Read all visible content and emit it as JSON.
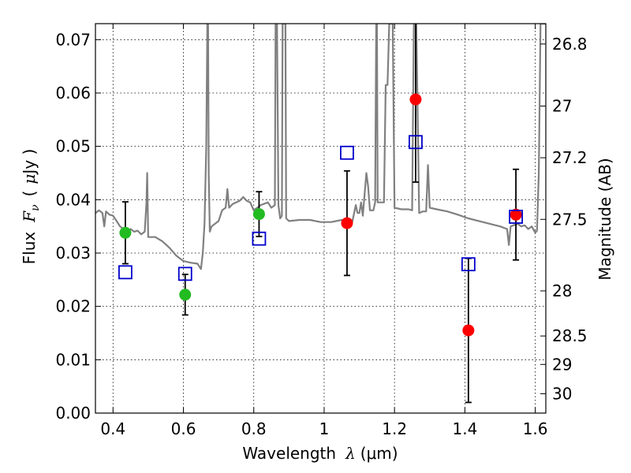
{
  "chart_data": {
    "type": "scatter",
    "xlabel": {
      "text": "Wavelength",
      "symbol": "λ",
      "unit": "(μm)"
    },
    "ylabel": {
      "text": "Flux",
      "symbol": "F",
      "subscript": "ν",
      "unit_open": "(",
      "unit_mu": "μ",
      "unit_rest": "Jy )"
    },
    "y2label": "Magnitude (AB)",
    "xlim": [
      0.35,
      1.63
    ],
    "ylim": [
      0.0,
      0.073
    ],
    "grid": true,
    "x_ticks": [
      {
        "value": 0.4,
        "label": "0.4"
      },
      {
        "value": 0.6,
        "label": "0.6"
      },
      {
        "value": 0.8,
        "label": "0.8"
      },
      {
        "value": 1.0,
        "label": "1"
      },
      {
        "value": 1.2,
        "label": "1.2"
      },
      {
        "value": 1.4,
        "label": "1.4"
      },
      {
        "value": 1.6,
        "label": "1.6"
      }
    ],
    "y_ticks": [
      {
        "value": 0.0,
        "label": "0.00"
      },
      {
        "value": 0.01,
        "label": "0.01"
      },
      {
        "value": 0.02,
        "label": "0.02"
      },
      {
        "value": 0.03,
        "label": "0.03"
      },
      {
        "value": 0.04,
        "label": "0.04"
      },
      {
        "value": 0.05,
        "label": "0.05"
      },
      {
        "value": 0.06,
        "label": "0.06"
      },
      {
        "value": 0.07,
        "label": "0.07"
      }
    ],
    "y2_ticks": [
      {
        "value": 26.8,
        "label": "26.8"
      },
      {
        "value": 27.0,
        "label": "27"
      },
      {
        "value": 27.2,
        "label": "27.2"
      },
      {
        "value": 27.5,
        "label": "27.5"
      },
      {
        "value": 28.0,
        "label": "28"
      },
      {
        "value": 28.5,
        "label": "28.5"
      },
      {
        "value": 29.0,
        "label": "29"
      },
      {
        "value": 30.0,
        "label": "30"
      }
    ],
    "series": [
      {
        "kind": "line",
        "color": "#808080",
        "points": [
          [
            0.35,
            0.0375
          ],
          [
            0.36,
            0.038
          ],
          [
            0.37,
            0.0375
          ],
          [
            0.375,
            0.035
          ],
          [
            0.38,
            0.0378
          ],
          [
            0.39,
            0.0372
          ],
          [
            0.4,
            0.037
          ],
          [
            0.41,
            0.036
          ],
          [
            0.42,
            0.035
          ],
          [
            0.43,
            0.0345
          ],
          [
            0.44,
            0.034
          ],
          [
            0.45,
            0.0345
          ],
          [
            0.46,
            0.034
          ],
          [
            0.47,
            0.0342
          ],
          [
            0.48,
            0.0335
          ],
          [
            0.49,
            0.034
          ],
          [
            0.495,
            0.0395
          ],
          [
            0.497,
            0.045
          ],
          [
            0.5,
            0.033
          ],
          [
            0.52,
            0.033
          ],
          [
            0.54,
            0.0322
          ],
          [
            0.56,
            0.031
          ],
          [
            0.58,
            0.0295
          ],
          [
            0.6,
            0.0285
          ],
          [
            0.62,
            0.0282
          ],
          [
            0.64,
            0.028
          ],
          [
            0.65,
            0.027
          ],
          [
            0.655,
            0.03
          ],
          [
            0.66,
            0.0355
          ],
          [
            0.665,
            0.05
          ],
          [
            0.668,
            0.073
          ],
          [
            0.67,
            0.073
          ],
          [
            0.672,
            0.045
          ],
          [
            0.675,
            0.034
          ],
          [
            0.68,
            0.035
          ],
          [
            0.7,
            0.036
          ],
          [
            0.71,
            0.038
          ],
          [
            0.72,
            0.0385
          ],
          [
            0.725,
            0.042
          ],
          [
            0.73,
            0.0385
          ],
          [
            0.74,
            0.0392
          ],
          [
            0.75,
            0.0395
          ],
          [
            0.76,
            0.0398
          ],
          [
            0.77,
            0.0405
          ],
          [
            0.78,
            0.0398
          ],
          [
            0.79,
            0.0395
          ],
          [
            0.8,
            0.038
          ],
          [
            0.82,
            0.039
          ],
          [
            0.84,
            0.0395
          ],
          [
            0.85,
            0.0385
          ],
          [
            0.86,
            0.039
          ],
          [
            0.862,
            0.073
          ],
          [
            0.866,
            0.073
          ],
          [
            0.87,
            0.039
          ],
          [
            0.875,
            0.0365
          ],
          [
            0.88,
            0.037
          ],
          [
            0.882,
            0.073
          ],
          [
            0.89,
            0.073
          ],
          [
            0.892,
            0.0365
          ],
          [
            0.9,
            0.036
          ],
          [
            0.93,
            0.0362
          ],
          [
            0.96,
            0.0362
          ],
          [
            0.99,
            0.0358
          ],
          [
            1.02,
            0.0358
          ],
          [
            1.05,
            0.0362
          ],
          [
            1.08,
            0.0358
          ],
          [
            1.09,
            0.039
          ],
          [
            1.095,
            0.0375
          ],
          [
            1.1,
            0.0375
          ],
          [
            1.105,
            0.0395
          ],
          [
            1.11,
            0.037
          ],
          [
            1.12,
            0.045
          ],
          [
            1.125,
            0.0425
          ],
          [
            1.13,
            0.038
          ],
          [
            1.14,
            0.038
          ],
          [
            1.145,
            0.0395
          ],
          [
            1.148,
            0.073
          ],
          [
            1.15,
            0.073
          ],
          [
            1.152,
            0.0395
          ],
          [
            1.16,
            0.0395
          ],
          [
            1.17,
            0.0395
          ],
          [
            1.175,
            0.0615
          ],
          [
            1.18,
            0.0615
          ],
          [
            1.185,
            0.073
          ],
          [
            1.195,
            0.073
          ],
          [
            1.2,
            0.0385
          ],
          [
            1.22,
            0.0382
          ],
          [
            1.24,
            0.0382
          ],
          [
            1.25,
            0.038
          ],
          [
            1.255,
            0.073
          ],
          [
            1.262,
            0.073
          ],
          [
            1.27,
            0.0375
          ],
          [
            1.28,
            0.0378
          ],
          [
            1.29,
            0.0378
          ],
          [
            1.295,
            0.0465
          ],
          [
            1.3,
            0.0385
          ],
          [
            1.32,
            0.0382
          ],
          [
            1.35,
            0.0378
          ],
          [
            1.38,
            0.0372
          ],
          [
            1.41,
            0.0365
          ],
          [
            1.44,
            0.036
          ],
          [
            1.47,
            0.0355
          ],
          [
            1.5,
            0.035
          ],
          [
            1.52,
            0.0345
          ],
          [
            1.525,
            0.0315
          ],
          [
            1.53,
            0.035
          ],
          [
            1.55,
            0.0355
          ],
          [
            1.56,
            0.035
          ],
          [
            1.57,
            0.0352
          ],
          [
            1.58,
            0.0345
          ],
          [
            1.59,
            0.035
          ],
          [
            1.6,
            0.0338
          ],
          [
            1.605,
            0.0342
          ],
          [
            1.61,
            0.045
          ],
          [
            1.615,
            0.073
          ],
          [
            1.63,
            0.073
          ]
        ]
      },
      {
        "kind": "scatter-error",
        "marker": "circle",
        "color": "#22bb22",
        "points": [
          {
            "x": 0.435,
            "y": 0.0338,
            "yerr": 0.0058
          },
          {
            "x": 0.605,
            "y": 0.0222,
            "yerr": 0.0038
          },
          {
            "x": 0.815,
            "y": 0.0373,
            "yerr": 0.0042
          }
        ]
      },
      {
        "kind": "scatter-error",
        "marker": "circle",
        "color": "#ff0000",
        "points": [
          {
            "x": 1.065,
            "y": 0.0356,
            "yerr": 0.0098
          },
          {
            "x": 1.26,
            "y": 0.0588,
            "yerr": 0.0155
          },
          {
            "x": 1.41,
            "y": 0.0155,
            "yerr": 0.0135
          },
          {
            "x": 1.545,
            "y": 0.0372,
            "yerr": 0.0085
          }
        ]
      },
      {
        "kind": "scatter",
        "marker": "open-square",
        "color": "#0000cc",
        "points": [
          {
            "x": 0.435,
            "y": 0.0264
          },
          {
            "x": 0.605,
            "y": 0.0261
          },
          {
            "x": 0.815,
            "y": 0.0327
          },
          {
            "x": 1.065,
            "y": 0.0488
          },
          {
            "x": 1.26,
            "y": 0.0508
          },
          {
            "x": 1.41,
            "y": 0.0279
          },
          {
            "x": 1.545,
            "y": 0.0368
          }
        ]
      }
    ]
  }
}
